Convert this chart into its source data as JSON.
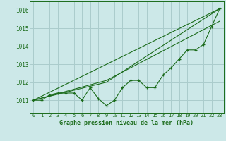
{
  "bg_color": "#cce8e8",
  "grid_color": "#aacccc",
  "line_color": "#1a6b1a",
  "title": "Graphe pression niveau de la mer (hPa)",
  "xlim": [
    -0.5,
    23.5
  ],
  "ylim": [
    1010.3,
    1016.5
  ],
  "yticks": [
    1011,
    1012,
    1013,
    1014,
    1015,
    1016
  ],
  "xticks": [
    0,
    1,
    2,
    3,
    4,
    5,
    6,
    7,
    8,
    9,
    10,
    11,
    12,
    13,
    14,
    15,
    16,
    17,
    18,
    19,
    20,
    21,
    22,
    23
  ],
  "line1_x": [
    0,
    1,
    2,
    3,
    4,
    5,
    6,
    7,
    8,
    9,
    10,
    11,
    12,
    13,
    14,
    15,
    16,
    17,
    18,
    19,
    20,
    21,
    22,
    23
  ],
  "line1_y": [
    1011.0,
    1011.0,
    1011.3,
    1011.4,
    1011.4,
    1011.4,
    1011.0,
    1011.7,
    1011.1,
    1010.7,
    1011.0,
    1011.7,
    1012.1,
    1012.1,
    1011.7,
    1011.7,
    1012.4,
    1012.8,
    1013.3,
    1013.8,
    1013.8,
    1014.1,
    1015.1,
    1016.1
  ],
  "line2_x": [
    0,
    23
  ],
  "line2_y": [
    1011.0,
    1016.1
  ],
  "line3_x": [
    0,
    9,
    23
  ],
  "line3_y": [
    1011.0,
    1012.0,
    1016.1
  ],
  "line4_x": [
    0,
    9,
    23
  ],
  "line4_y": [
    1011.0,
    1012.1,
    1015.4
  ]
}
